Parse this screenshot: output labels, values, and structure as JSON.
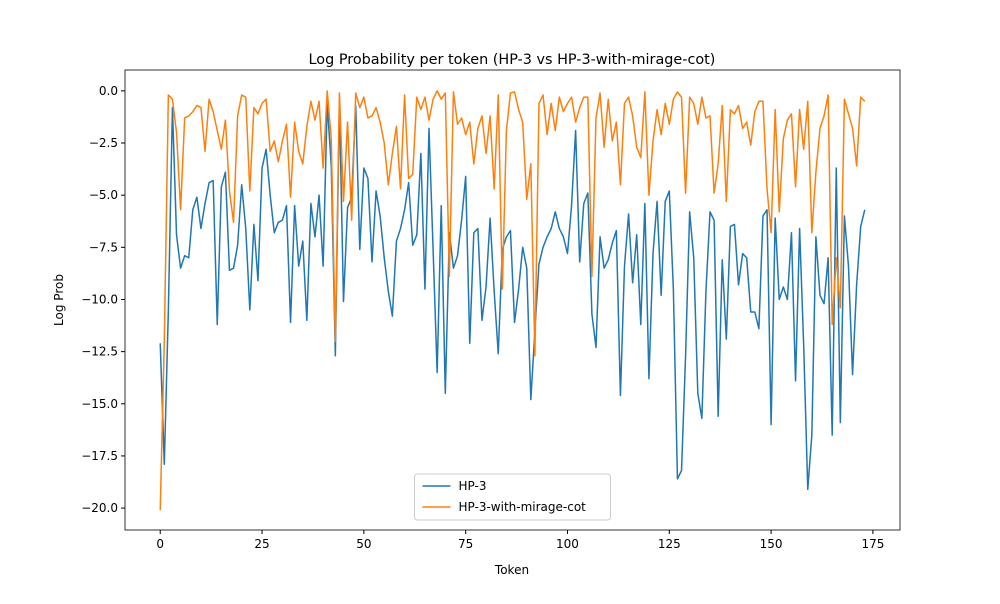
{
  "chart_data": {
    "type": "line",
    "title": "Log Probability per token (HP-3 vs HP-3-with-mirage-cot)",
    "x_label": "Token",
    "y_label": "Log Prob",
    "x": [
      0,
      1,
      2,
      3,
      4,
      5,
      6,
      7,
      8,
      9,
      10,
      11,
      12,
      13,
      14,
      15,
      16,
      17,
      18,
      19,
      20,
      21,
      22,
      23,
      24,
      25,
      26,
      27,
      28,
      29,
      30,
      31,
      32,
      33,
      34,
      35,
      36,
      37,
      38,
      39,
      40,
      41,
      42,
      43,
      44,
      45,
      46,
      47,
      48,
      49,
      50,
      51,
      52,
      53,
      54,
      55,
      56,
      57,
      58,
      59,
      60,
      61,
      62,
      63,
      64,
      65,
      66,
      67,
      68,
      69,
      70,
      71,
      72,
      73,
      74,
      75,
      76,
      77,
      78,
      79,
      80,
      81,
      82,
      83,
      84,
      85,
      86,
      87,
      88,
      89,
      90,
      91,
      92,
      93,
      94,
      95,
      96,
      97,
      98,
      99,
      100,
      101,
      102,
      103,
      104,
      105,
      106,
      107,
      108,
      109,
      110,
      111,
      112,
      113,
      114,
      115,
      116,
      117,
      118,
      119,
      120,
      121,
      122,
      123,
      124,
      125,
      126,
      127,
      128,
      129,
      130,
      131,
      132,
      133,
      134,
      135,
      136,
      137,
      138,
      139,
      140,
      141,
      142,
      143,
      144,
      145,
      146,
      147,
      148,
      149,
      150,
      151,
      152,
      153,
      154,
      155,
      156,
      157,
      158,
      159,
      160,
      161,
      162,
      163,
      164,
      165,
      166,
      167,
      168,
      169,
      170,
      171,
      172,
      173
    ],
    "series": [
      {
        "name": "HP-3",
        "color": "#1f77b4",
        "values": [
          -12.1,
          -17.9,
          -10.5,
          -0.8,
          -6.9,
          -8.5,
          -7.9,
          -8.0,
          -5.7,
          -5.1,
          -6.6,
          -5.4,
          -4.4,
          -4.3,
          -11.2,
          -4.6,
          -3.9,
          -8.6,
          -8.5,
          -7.4,
          -4.5,
          -6.6,
          -10.5,
          -6.4,
          -9.1,
          -3.7,
          -2.8,
          -5.0,
          -6.8,
          -6.3,
          -6.2,
          -5.5,
          -11.1,
          -5.5,
          -8.4,
          -7.2,
          -11.0,
          -5.4,
          -7.0,
          -5.0,
          -8.4,
          -0.6,
          -3.6,
          -12.7,
          -0.5,
          -10.1,
          -5.6,
          -5.1,
          -0.7,
          -7.6,
          -3.7,
          -4.2,
          -8.2,
          -4.8,
          -6.0,
          -8.0,
          -9.6,
          -10.8,
          -7.2,
          -6.6,
          -5.7,
          -4.4,
          -7.4,
          -6.9,
          -3.0,
          -9.5,
          -1.8,
          -7.6,
          -13.5,
          -5.5,
          -14.5,
          -6.8,
          -8.5,
          -7.9,
          -6.2,
          -4.1,
          -12.1,
          -6.8,
          -6.6,
          -11.0,
          -9.4,
          -6.1,
          -9.6,
          -12.6,
          -7.6,
          -7.0,
          -6.7,
          -11.1,
          -9.5,
          -7.5,
          -8.5,
          -14.8,
          -11.5,
          -8.3,
          -7.5,
          -7.0,
          -6.6,
          -5.8,
          -6.6,
          -7.0,
          -7.8,
          -5.5,
          -1.9,
          -8.2,
          -5.4,
          -4.9,
          -10.7,
          -12.3,
          -7.0,
          -8.5,
          -8.1,
          -7.3,
          -6.7,
          -14.6,
          -8.4,
          -5.9,
          -9.2,
          -6.9,
          -11.2,
          -5.4,
          -13.8,
          -7.8,
          -5.3,
          -9.8,
          -5.3,
          -4.8,
          -9.5,
          -18.6,
          -18.2,
          -12.7,
          -5.8,
          -8.0,
          -14.5,
          -15.7,
          -9.6,
          -5.8,
          -6.2,
          -15.6,
          -8.1,
          -11.9,
          -6.5,
          -6.4,
          -9.3,
          -7.8,
          -8.0,
          -10.6,
          -10.6,
          -11.4,
          -6.0,
          -5.7,
          -16.0,
          -6.1,
          -10.0,
          -9.4,
          -10.0,
          -6.8,
          -13.9,
          -6.6,
          -12.2,
          -19.1,
          -16.5,
          -7.0,
          -9.8,
          -10.2,
          -8.0,
          -16.5,
          -3.7,
          -15.9,
          -6.0,
          -8.4,
          -13.6,
          -9.3,
          -6.5,
          -5.7
        ]
      },
      {
        "name": "HP-3-with-mirage-cot",
        "color": "#ff7f0e",
        "values": [
          -20.1,
          -12.0,
          -0.2,
          -0.4,
          -2.0,
          -5.7,
          -1.3,
          -1.2,
          -1.0,
          -0.7,
          -0.8,
          -2.9,
          -0.4,
          -1.0,
          -1.9,
          -2.8,
          -1.4,
          -4.8,
          -6.3,
          -1.2,
          -0.2,
          -0.3,
          -4.8,
          -0.8,
          -1.1,
          -0.6,
          -0.4,
          -2.9,
          -2.4,
          -3.4,
          -2.4,
          -1.6,
          -5.1,
          -1.5,
          -2.9,
          -3.5,
          -1.7,
          -0.5,
          -1.4,
          -0.5,
          -3.7,
          0.0,
          -2.3,
          -12.0,
          -0.1,
          -5.3,
          -1.5,
          -6.2,
          -0.1,
          -0.8,
          -0.3,
          -1.3,
          -1.2,
          -0.8,
          -1.5,
          -2.5,
          -4.5,
          -3.0,
          -1.7,
          -4.7,
          -0.2,
          -4.2,
          -4.0,
          -0.3,
          -0.9,
          -0.3,
          -1.4,
          -0.4,
          0.0,
          -0.4,
          -0.1,
          -8.9,
          -0.05,
          -1.6,
          -1.3,
          -2.1,
          -1.5,
          -3.5,
          -1.8,
          -1.2,
          -3.0,
          -1.2,
          -4.7,
          -0.2,
          -9.5,
          -1.9,
          -0.1,
          -0.05,
          -0.9,
          -1.5,
          -5.2,
          -3.5,
          -12.7,
          -0.6,
          -0.2,
          -2.1,
          -0.6,
          -1.9,
          -0.3,
          -1.0,
          -0.6,
          -0.3,
          -1.5,
          -0.8,
          -0.3,
          -0.3,
          -8.9,
          -1.3,
          -0.1,
          -2.7,
          -0.4,
          -2.4,
          -1.5,
          -4.5,
          -0.6,
          -0.3,
          -1.2,
          -2.7,
          -3.2,
          -0.05,
          -5.0,
          -2.4,
          -0.9,
          -2.1,
          -0.6,
          -1.6,
          -0.4,
          -0.05,
          -0.3,
          -4.9,
          -0.3,
          -0.6,
          -1.6,
          -0.3,
          -1.3,
          -1.2,
          -4.9,
          -3.5,
          -0.7,
          -5.3,
          -0.9,
          -1.1,
          -0.7,
          -1.8,
          -1.5,
          -2.6,
          -1.0,
          -0.5,
          -0.5,
          -4.7,
          -6.8,
          -0.9,
          -5.8,
          -2.3,
          -1.4,
          -1.1,
          -4.6,
          -0.9,
          -2.8,
          -0.5,
          -6.8,
          -3.9,
          -1.8,
          -1.2,
          -0.2,
          -11.2,
          -8.0,
          -10.4,
          -0.4,
          -1.1,
          -1.8,
          -3.6,
          -0.3,
          -0.5
        ]
      }
    ],
    "xlim": [
      -8.65,
      181.65
    ],
    "ylim": [
      -21.05,
      1.0
    ],
    "xticks": [
      0,
      25,
      50,
      75,
      100,
      125,
      150,
      175
    ],
    "yticks": [
      {
        "value": 0,
        "label": "0.0"
      },
      {
        "value": -2.5,
        "label": "−2.5"
      },
      {
        "value": -5,
        "label": "−5.0"
      },
      {
        "value": -7.5,
        "label": "−7.5"
      },
      {
        "value": -10,
        "label": "−10.0"
      },
      {
        "value": -12.5,
        "label": "−12.5"
      },
      {
        "value": -15,
        "label": "−15.0"
      },
      {
        "value": -17.5,
        "label": "−17.5"
      },
      {
        "value": -20,
        "label": "−20.0"
      }
    ],
    "grid": false,
    "legend": "lower center"
  }
}
